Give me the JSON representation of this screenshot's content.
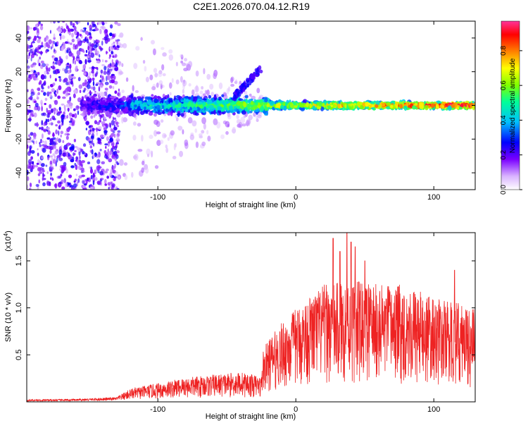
{
  "figure": {
    "title": "C2E1.2026.070.04.12.R19"
  },
  "chart_data": [
    {
      "type": "heatmap",
      "title": "",
      "xlabel": "Height of straight line (km)",
      "ylabel": "Frequency (Hz)",
      "xlim": [
        -195,
        130
      ],
      "ylim": [
        -50,
        50
      ],
      "x_ticks": [
        -100,
        0,
        100
      ],
      "y_ticks": [
        -40,
        -20,
        0,
        20,
        40
      ],
      "grid": false,
      "colorbar": {
        "label": "Normalized spectral amplitude",
        "range": [
          0,
          0.97
        ],
        "ticks": [
          "0.0",
          "0.2",
          "0.4",
          "0.6",
          "0.8"
        ],
        "tick_values": [
          0.0,
          0.2,
          0.4,
          0.6,
          0.8
        ],
        "colormap": [
          "#ffffff",
          "#d9b3ff",
          "#7a00ff",
          "#0000ff",
          "#00bfff",
          "#00ff99",
          "#7fff00",
          "#ffff00",
          "#ff8000",
          "#ff0000",
          "#ff0080",
          "#ff3399"
        ]
      },
      "regions": [
        {
          "name": "broadband noise",
          "x_range": [
            -195,
            -128
          ],
          "y_range": [
            -50,
            50
          ],
          "amplitude": 0.15
        },
        {
          "name": "central band",
          "x_range": [
            -155,
            130
          ],
          "y_center": 0,
          "amplitude_start": 0.3,
          "amplitude_end": 0.9
        },
        {
          "name": "rising trace",
          "x_range": [
            -45,
            -25
          ],
          "y_range": [
            5,
            22
          ],
          "amplitude": 0.2
        }
      ]
    },
    {
      "type": "line",
      "title": "",
      "xlabel": "Height of straight line (km)",
      "ylabel": "SNR (10 * v/v)",
      "y_multiplier_label": "(x10",
      "y_multiplier_exp": "4",
      "y_multiplier_close": ")",
      "xlim": [
        -195,
        130
      ],
      "ylim": [
        0,
        18000
      ],
      "x_ticks": [
        -100,
        0,
        100
      ],
      "y_ticks": [
        0.5,
        1.0,
        1.5
      ],
      "y_tick_labels": [
        "0.5",
        "1.0",
        "1.5"
      ],
      "grid": false,
      "series": [
        {
          "name": "SNR",
          "color": "#ee2222",
          "envelope_x": [
            -195,
            -160,
            -130,
            -120,
            -100,
            -80,
            -60,
            -40,
            -25,
            -24,
            -20,
            -10,
            0,
            20,
            40,
            60,
            80,
            100,
            120,
            130
          ],
          "envelope_y": [
            250,
            300,
            500,
            1400,
            2000,
            2600,
            2900,
            3200,
            2700,
            5500,
            6600,
            8500,
            10000,
            12500,
            13000,
            12500,
            12500,
            11000,
            10500,
            10000
          ],
          "notable_peaks": [
            {
              "x": 27,
              "y": 17400
            },
            {
              "x": 37,
              "y": 18000
            },
            {
              "x": 40,
              "y": 17000
            },
            {
              "x": 43,
              "y": 16500
            },
            {
              "x": 32,
              "y": 16000
            },
            {
              "x": 115,
              "y": 14000
            },
            {
              "x": 50,
              "y": 15000
            }
          ]
        }
      ]
    }
  ]
}
